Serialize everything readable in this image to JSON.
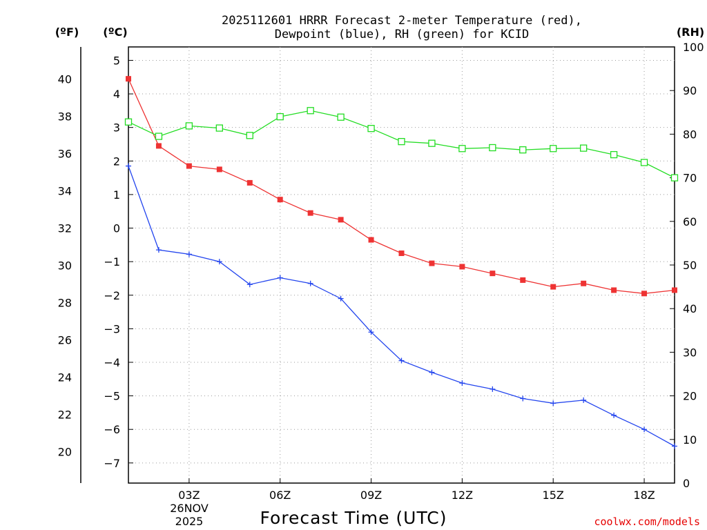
{
  "chart_data": {
    "type": "line",
    "title_lines": [
      "2025112601 HRRR Forecast 2-meter Temperature (red),",
      "Dewpoint (blue), RH (green) for KCID"
    ],
    "left_unit_f": "(ºF)",
    "left_unit_c": "(ºC)",
    "right_unit": "(RH)",
    "xlabel": "Forecast Time (UTC)",
    "date_label": [
      "26NOV",
      "2025"
    ],
    "watermark": "coolwx.com/models",
    "x_hours": [
      1,
      2,
      3,
      4,
      5,
      6,
      7,
      8,
      9,
      10,
      11,
      12,
      13,
      14,
      15,
      16,
      17,
      18,
      19
    ],
    "xlim": [
      1,
      19
    ],
    "x_ticks": [
      {
        "hour": 3,
        "label": "03Z"
      },
      {
        "hour": 6,
        "label": "06Z"
      },
      {
        "hour": 9,
        "label": "09Z"
      },
      {
        "hour": 12,
        "label": "12Z"
      },
      {
        "hour": 15,
        "label": "15Z"
      },
      {
        "hour": 18,
        "label": "18Z"
      }
    ],
    "ylim_c": [
      -7.6,
      5.4
    ],
    "y_ticks_c": [
      5,
      4,
      3,
      2,
      1,
      0,
      -1,
      -2,
      -3,
      -4,
      -5,
      -6,
      -7
    ],
    "y_ticks_c_labels": [
      "5",
      "4",
      "3",
      "2",
      "1",
      "0",
      "−1",
      "−2",
      "−3",
      "−4",
      "−5",
      "−6",
      "−7"
    ],
    "y_ticks_f": [
      40,
      38,
      36,
      34,
      32,
      30,
      28,
      26,
      24,
      22,
      20
    ],
    "y_ticks_f_labels": [
      "40",
      "38",
      "36",
      "34",
      "32",
      "30",
      "28",
      "26",
      "24",
      "22",
      "20"
    ],
    "ylim_rh": [
      0,
      100
    ],
    "y_ticks_rh": [
      0,
      10,
      20,
      30,
      40,
      50,
      60,
      70,
      80,
      90,
      100
    ],
    "y_ticks_rh_labels": [
      "0",
      "10",
      "20",
      "30",
      "40",
      "50",
      "60",
      "70",
      "80",
      "90",
      "100"
    ],
    "series": [
      {
        "name": "2-meter Temperature",
        "color": "#ee3333",
        "units": "C",
        "marker": "filled-square",
        "values": [
          4.45,
          2.45,
          1.85,
          1.75,
          1.35,
          0.85,
          0.45,
          0.25,
          -0.35,
          -0.75,
          -1.05,
          -1.15,
          -1.35,
          -1.55,
          -1.75,
          -1.65,
          -1.85,
          -1.95,
          -1.85
        ]
      },
      {
        "name": "Dewpoint",
        "color": "#2244ee",
        "units": "C",
        "marker": "plus",
        "values": [
          1.85,
          -0.65,
          -0.78,
          -1.0,
          -1.68,
          -1.48,
          -1.65,
          -2.1,
          -3.1,
          -3.95,
          -4.3,
          -4.62,
          -4.8,
          -5.08,
          -5.22,
          -5.13,
          -5.58,
          -6.0,
          -6.5
        ]
      },
      {
        "name": "RH",
        "color": "#22dd22",
        "units": "%",
        "marker": "open-square",
        "values": [
          82.8,
          79.5,
          81.9,
          81.4,
          79.7,
          84.0,
          85.4,
          83.9,
          81.3,
          78.3,
          77.9,
          76.7,
          76.9,
          76.4,
          76.7,
          76.8,
          75.3,
          73.5,
          70.0
        ]
      }
    ]
  }
}
